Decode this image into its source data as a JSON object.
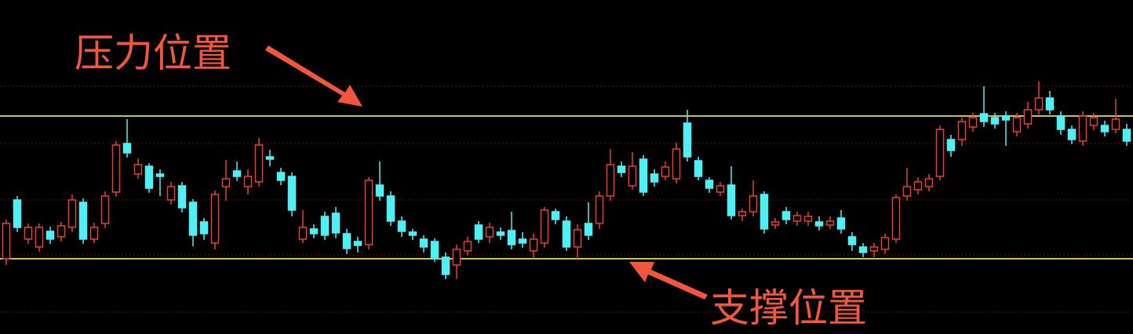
{
  "chart_data": {
    "type": "candlestick",
    "annotations": [
      "压力位置",
      "支撑位置"
    ],
    "open": [
      96,
      171,
      121,
      111,
      131,
      124,
      136,
      168,
      121,
      141,
      181,
      243,
      204,
      214,
      204,
      171,
      189,
      168,
      143,
      116,
      188,
      208,
      188,
      194,
      226,
      206,
      201,
      121,
      134,
      150,
      154,
      128,
      118,
      114,
      190,
      176,
      144,
      130,
      121,
      118,
      98,
      88,
      106,
      139,
      124,
      130,
      132,
      121,
      106,
      116,
      156,
      144,
      111,
      141,
      141,
      176,
      214,
      189,
      223,
      204,
      201,
      198,
      269,
      221,
      196,
      181,
      190,
      151,
      156,
      178,
      139,
      156,
      144,
      144,
      143,
      139,
      148,
      124,
      111,
      106,
      108,
      121,
      176,
      184,
      188,
      201,
      248,
      248,
      264,
      281,
      276,
      278,
      258,
      268,
      286,
      301,
      278,
      261,
      246,
      266,
      266,
      261,
      261
    ],
    "high": [
      146,
      176,
      141,
      141,
      137,
      143,
      178,
      173,
      142,
      182,
      246,
      274,
      224,
      218,
      210,
      194,
      194,
      172,
      148,
      183,
      222,
      220,
      210,
      250,
      235,
      212,
      206,
      158,
      140,
      156,
      162,
      134,
      124,
      200,
      220,
      182,
      150,
      134,
      126,
      122,
      104,
      114,
      124,
      144,
      142,
      136,
      156,
      130,
      128,
      162,
      160,
      150,
      140,
      168,
      182,
      236,
      220,
      232,
      228,
      210,
      220,
      244,
      286,
      226,
      200,
      194,
      214,
      160,
      196,
      182,
      148,
      162,
      156,
      156,
      150,
      150,
      158,
      130,
      116,
      116,
      128,
      178,
      212,
      200,
      204,
      266,
      254,
      276,
      282,
      316,
      282,
      284,
      282,
      296,
      322,
      310,
      284,
      266,
      284,
      282,
      272,
      300,
      268
    ],
    "low": [
      88,
      130,
      115,
      105,
      115,
      118,
      130,
      115,
      116,
      135,
      175,
      225,
      198,
      180,
      176,
      165,
      155,
      112,
      120,
      108,
      170,
      195,
      178,
      188,
      214,
      190,
      150,
      116,
      122,
      120,
      122,
      102,
      104,
      108,
      170,
      138,
      124,
      120,
      104,
      92,
      70,
      70,
      100,
      116,
      116,
      120,
      108,
      110,
      96,
      110,
      140,
      106,
      94,
      120,
      134,
      170,
      200,
      184,
      176,
      188,
      196,
      192,
      220,
      196,
      180,
      176,
      146,
      144,
      150,
      128,
      134,
      140,
      138,
      138,
      132,
      134,
      128,
      106,
      98,
      98,
      102,
      116,
      170,
      178,
      182,
      196,
      226,
      240,
      258,
      264,
      262,
      240,
      252,
      262,
      280,
      280,
      254,
      242,
      240,
      260,
      252,
      256,
      240
    ],
    "close": [
      141,
      136,
      136,
      136,
      121,
      138,
      171,
      121,
      136,
      176,
      241,
      231,
      216,
      186,
      201,
      188,
      161,
      126,
      128,
      178,
      198,
      201,
      201,
      241,
      223,
      196,
      158,
      136,
      128,
      126,
      129,
      109,
      113,
      196,
      176,
      144,
      131,
      126,
      111,
      96,
      76,
      108,
      118,
      121,
      136,
      126,
      114,
      116,
      121,
      158,
      146,
      111,
      133,
      126,
      176,
      216,
      206,
      214,
      181,
      194,
      213,
      236,
      226,
      201,
      186,
      189,
      151,
      156,
      176,
      134,
      143,
      146,
      151,
      150,
      138,
      144,
      134,
      114,
      104,
      111,
      123,
      174,
      188,
      194,
      198,
      261,
      234,
      271,
      276,
      271,
      268,
      273,
      276,
      286,
      301,
      286,
      261,
      248,
      278,
      276,
      258,
      274,
      246
    ],
    "ylim": [
      0,
      426
    ],
    "gridlines": [
      316,
      243,
      171,
      101,
      28
    ],
    "resistance": 278,
    "support": 96,
    "up_color": "#e8402c",
    "down_color": "#4ff0f5",
    "level_color": "#c8c43c",
    "annotation_color": "#f2563c"
  }
}
